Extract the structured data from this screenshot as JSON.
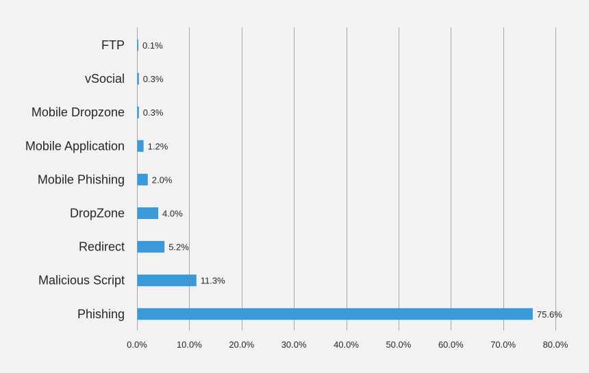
{
  "chart_data": {
    "type": "bar",
    "orientation": "horizontal",
    "categories": [
      "FTP",
      "vSocial",
      "Mobile Dropzone",
      "Mobile Application",
      "Mobile Phishing",
      "DropZone",
      "Redirect",
      "Malicious Script",
      "Phishing"
    ],
    "values": [
      0.1,
      0.3,
      0.3,
      1.2,
      2.0,
      4.0,
      5.2,
      11.3,
      75.6
    ],
    "data_labels": [
      "0.1%",
      "0.3%",
      "0.3%",
      "1.2%",
      "2.0%",
      "4.0%",
      "5.2%",
      "11.3%",
      "75.6%"
    ],
    "x_ticks": [
      0,
      10,
      20,
      30,
      40,
      50,
      60,
      70,
      80
    ],
    "x_tick_labels": [
      "0.0%",
      "10.0%",
      "20.0%",
      "30.0%",
      "40.0%",
      "50.0%",
      "60.0%",
      "70.0%",
      "80.0%"
    ],
    "xlim": [
      0,
      80
    ],
    "title": "",
    "xlabel": "",
    "ylabel": "",
    "grid": "vertical",
    "legend": "none",
    "bar_color": "#3a9ad9",
    "gridline_color": "#a6a6a6",
    "background_color": "#f2f2f2"
  }
}
